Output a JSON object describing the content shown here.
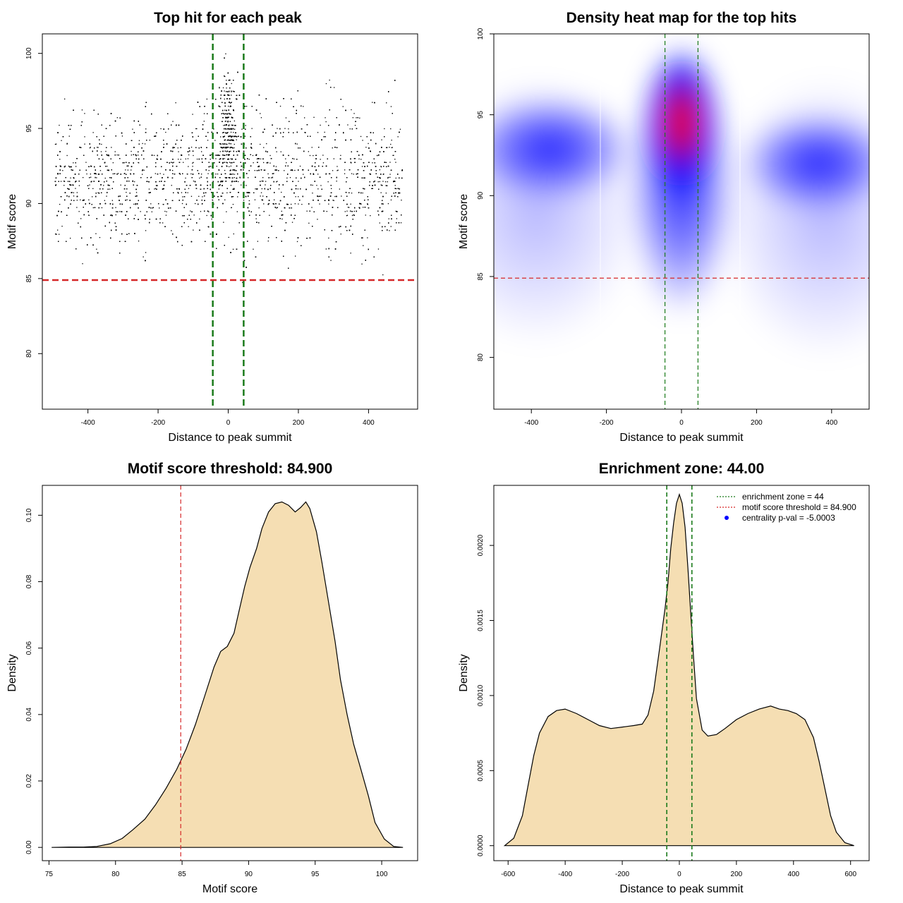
{
  "chart_data": [
    {
      "id": "scatter",
      "type": "scatter",
      "title": "Top hit for each peak",
      "xlabel": "Distance to peak summit",
      "ylabel": "Motif score",
      "xlim": [
        -530,
        540
      ],
      "ylim": [
        76.3,
        101.3
      ],
      "x_ticks": [
        -400,
        -200,
        0,
        200,
        400
      ],
      "y_ticks": [
        80,
        85,
        90,
        95,
        100
      ],
      "hline": {
        "value": 84.9,
        "color": "#d62728"
      },
      "vlines": [
        {
          "value": -44,
          "color": "#1a7a1a"
        },
        {
          "value": 44,
          "color": "#1a7a1a"
        }
      ],
      "point_count_approx": 7000,
      "x_range": [
        -495,
        495
      ],
      "y_range": [
        76.9,
        100
      ],
      "point_color": "#000000"
    },
    {
      "id": "heatmap",
      "type": "heatmap",
      "title": "Density heat map for the top hits",
      "xlabel": "Distance to peak summit",
      "ylabel": "Motif score",
      "xlim": [
        -500,
        500
      ],
      "ylim": [
        76.8,
        100
      ],
      "x_ticks": [
        -400,
        -200,
        0,
        200,
        400
      ],
      "y_ticks": [
        80,
        85,
        90,
        95,
        100
      ],
      "hline": {
        "value": 84.9,
        "color": "#d62728"
      },
      "vlines": [
        {
          "value": -44,
          "color": "#1a7a1a"
        },
        {
          "value": 44,
          "color": "#1a7a1a"
        }
      ],
      "colors": [
        "#ffffff",
        "#0000ff",
        "#ff0000"
      ],
      "hotspot": {
        "x": 0,
        "y": 95
      }
    },
    {
      "id": "score-density",
      "type": "area",
      "title": "Motif score threshold: 84.900",
      "xlabel": "Motif score",
      "ylabel": "Density",
      "xlim": [
        74.5,
        102.7
      ],
      "ylim": [
        -0.004,
        0.109
      ],
      "x_ticks": [
        75,
        80,
        85,
        90,
        95,
        100
      ],
      "y_ticks": [
        0.0,
        0.02,
        0.04,
        0.06,
        0.08,
        0.1
      ],
      "y_tick_labels": [
        "0.00",
        "0.02",
        "0.04",
        "0.06",
        "0.08",
        "0.10"
      ],
      "fill": "#f5deb3",
      "vline": {
        "value": 84.9,
        "color": "#d62728"
      },
      "x": [
        75.2,
        76.5,
        77.6,
        78.6,
        79.6,
        80.5,
        81.3,
        82.2,
        83.0,
        83.8,
        84.6,
        85.3,
        86.0,
        86.7,
        87.4,
        87.9,
        88.4,
        88.9,
        89.3,
        89.7,
        90.1,
        90.6,
        91.0,
        91.5,
        92.0,
        92.5,
        93.0,
        93.5,
        93.9,
        94.3,
        94.6,
        95.1,
        95.5,
        96.0,
        96.5,
        96.9,
        97.4,
        97.9,
        98.4,
        99.0,
        99.5,
        100.2,
        100.9,
        101.6
      ],
      "y": [
        0.0,
        0.0001,
        0.0001,
        0.0003,
        0.0011,
        0.0027,
        0.0053,
        0.0085,
        0.0128,
        0.0178,
        0.0235,
        0.0295,
        0.037,
        0.0456,
        0.0543,
        0.059,
        0.0605,
        0.0645,
        0.0715,
        0.0785,
        0.0843,
        0.09,
        0.096,
        0.101,
        0.1035,
        0.104,
        0.103,
        0.101,
        0.1023,
        0.104,
        0.102,
        0.095,
        0.086,
        0.074,
        0.062,
        0.0505,
        0.04,
        0.031,
        0.024,
        0.0155,
        0.0075,
        0.0025,
        0.0003,
        0.0
      ]
    },
    {
      "id": "distance-density",
      "type": "area",
      "title": "Enrichment zone: 44.00",
      "xlabel": "Distance to peak summit",
      "ylabel": "Density",
      "xlim": [
        -650,
        665
      ],
      "ylim": [
        -0.0001,
        0.0024
      ],
      "x_ticks": [
        -600,
        -400,
        -200,
        0,
        200,
        400,
        600
      ],
      "y_ticks": [
        0.0,
        0.0005,
        0.001,
        0.0015,
        0.002
      ],
      "y_tick_labels": [
        "0.0000",
        "0.0005",
        "0.0010",
        "0.0015",
        "0.0020"
      ],
      "fill": "#f5deb3",
      "vlines": [
        {
          "value": -44,
          "color": "#1a7a1a"
        },
        {
          "value": 44,
          "color": "#1a7a1a"
        }
      ],
      "x": [
        -612,
        -580,
        -550,
        -530,
        -510,
        -490,
        -460,
        -430,
        -400,
        -360,
        -320,
        -280,
        -240,
        -200,
        -160,
        -130,
        -110,
        -90,
        -70,
        -50,
        -40,
        -30,
        -20,
        -10,
        0,
        10,
        20,
        30,
        40,
        50,
        60,
        80,
        100,
        130,
        160,
        200,
        240,
        280,
        320,
        350,
        380,
        410,
        440,
        470,
        490,
        510,
        530,
        550,
        580,
        612
      ],
      "y": [
        0.0,
        5e-05,
        0.0002,
        0.0004,
        0.0006,
        0.00075,
        0.00086,
        0.0009,
        0.00091,
        0.00088,
        0.00084,
        0.0008,
        0.00078,
        0.00079,
        0.0008,
        0.00081,
        0.00087,
        0.00103,
        0.0013,
        0.00158,
        0.00175,
        0.00198,
        0.00215,
        0.00228,
        0.00234,
        0.00228,
        0.00212,
        0.00185,
        0.00155,
        0.00125,
        0.00098,
        0.00077,
        0.00073,
        0.00074,
        0.00078,
        0.00084,
        0.00088,
        0.00091,
        0.00093,
        0.00091,
        0.0009,
        0.00088,
        0.00084,
        0.00072,
        0.00056,
        0.00038,
        0.0002,
        9e-05,
        2e-05,
        0.0
      ]
    }
  ],
  "legend": {
    "entries": [
      {
        "label": "enrichment zone = 44",
        "color": "#1a7a1a",
        "kind": "dotted-line"
      },
      {
        "label": "motif score threshold = 84.900",
        "color": "#d62728",
        "kind": "dotted-line"
      },
      {
        "label": "centrality p-val = -5.0003",
        "color": "#0000ff",
        "kind": "point"
      }
    ]
  }
}
